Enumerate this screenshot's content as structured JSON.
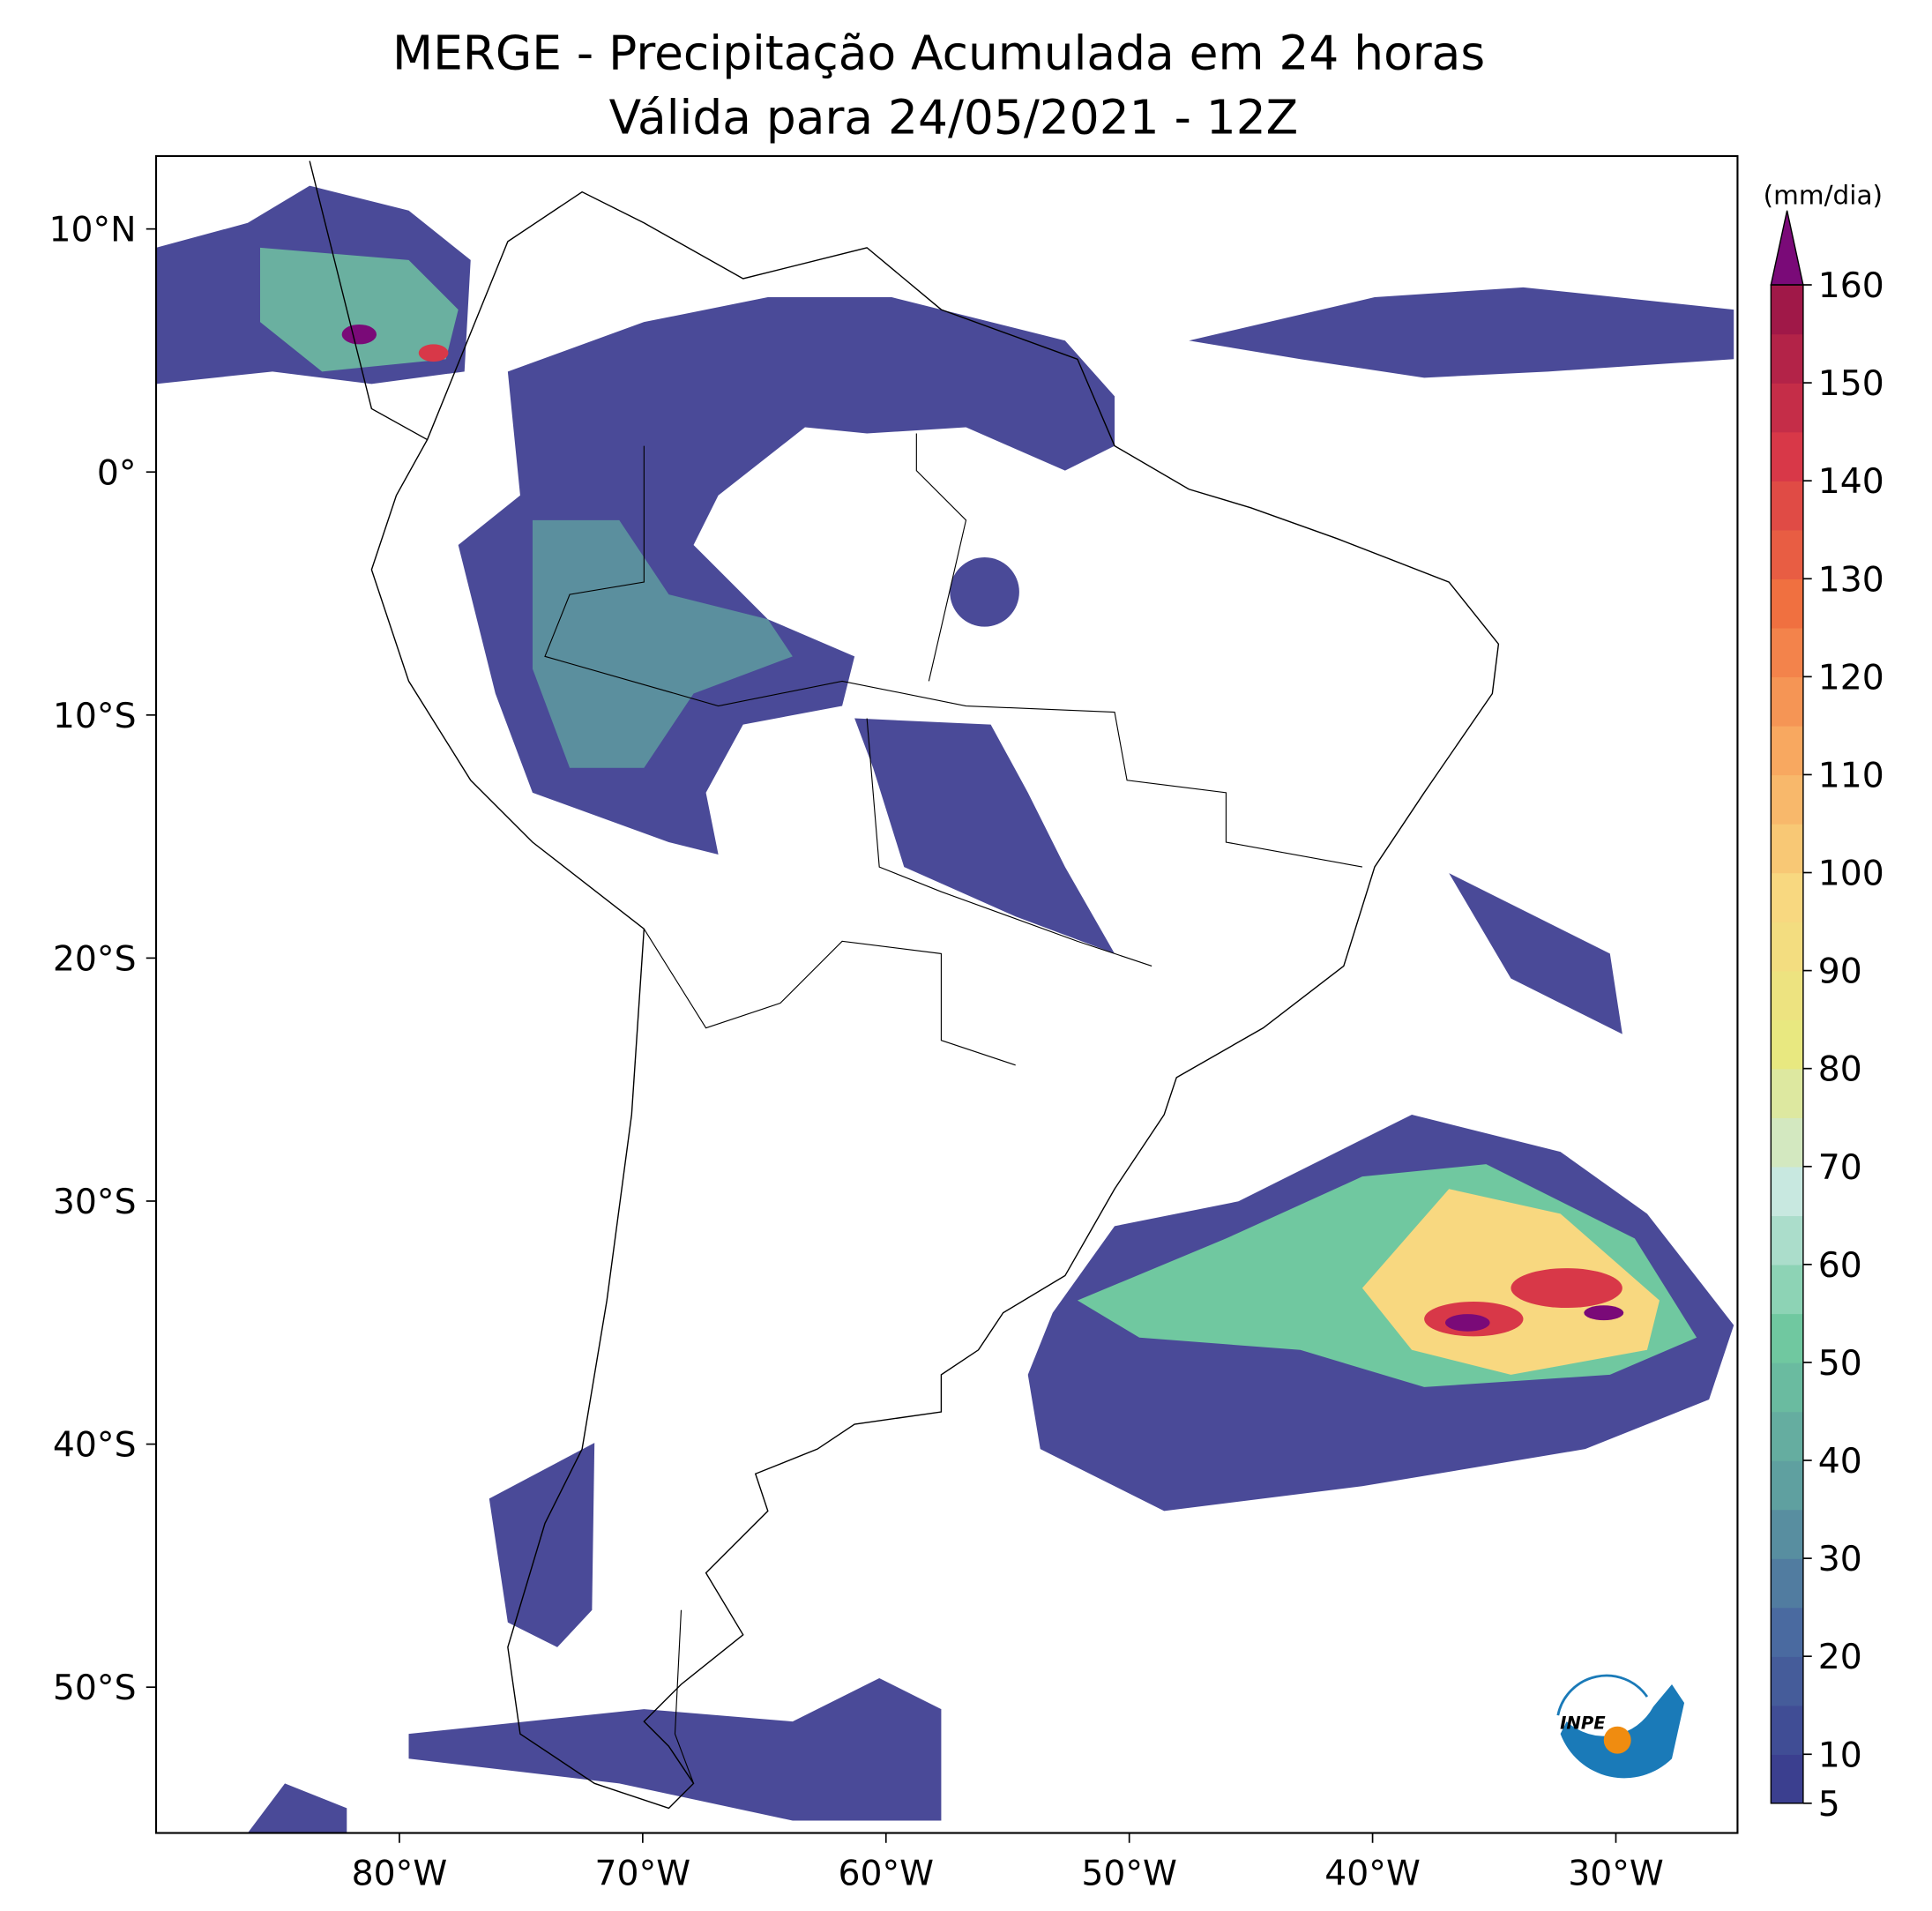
{
  "map": {
    "title": "MERGE - Precipitação Acumulada em 24 horas",
    "subtitle": "Válida para 24/05/2021 - 12Z",
    "xlim": [
      -90,
      -25
    ],
    "ylim": [
      -56,
      13
    ],
    "xticks": [
      {
        "value": -80,
        "label": "80°W"
      },
      {
        "value": -70,
        "label": "70°W"
      },
      {
        "value": -60,
        "label": "60°W"
      },
      {
        "value": -50,
        "label": "50°W"
      },
      {
        "value": -40,
        "label": "40°W"
      },
      {
        "value": -30,
        "label": "30°W"
      }
    ],
    "yticks": [
      {
        "value": 10,
        "label": "10°N"
      },
      {
        "value": 0,
        "label": "0°"
      },
      {
        "value": -10,
        "label": "10°S"
      },
      {
        "value": -20,
        "label": "20°S"
      },
      {
        "value": -30,
        "label": "30°S"
      },
      {
        "value": -40,
        "label": "40°S"
      },
      {
        "value": -50,
        "label": "50°S"
      }
    ],
    "colorbar": {
      "label": "(mm/dia)",
      "range": [
        5,
        160
      ],
      "ticks": [
        5,
        10,
        20,
        30,
        40,
        50,
        60,
        70,
        80,
        90,
        100,
        110,
        120,
        130,
        140,
        150,
        160
      ],
      "colors": [
        "#3b3f8f",
        "#4a6aa0",
        "#5fa0a0",
        "#70c8a0",
        "#c8e8e0",
        "#e8e880",
        "#f8d880",
        "#f8a860",
        "#f07040",
        "#d83848",
        "#a01848"
      ],
      "extend_color": "#7a0a78"
    },
    "logo": {
      "text": "INPE"
    }
  }
}
